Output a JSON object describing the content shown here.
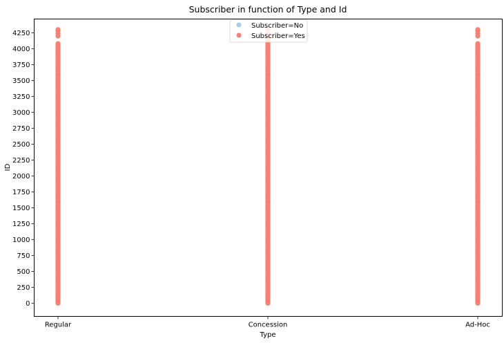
{
  "chart_data": {
    "type": "scatter",
    "title": "Subscriber in function of Type and Id",
    "xlabel": "Type",
    "ylabel": "ID",
    "categories": [
      "Regular",
      "Concession",
      "Ad-Hoc"
    ],
    "ylim": [
      -200,
      4450
    ],
    "yticks": [
      0,
      250,
      500,
      750,
      1000,
      1250,
      1500,
      1750,
      2000,
      2250,
      2500,
      2750,
      3000,
      3250,
      3500,
      3750,
      4000,
      4250
    ],
    "grid": false,
    "legend_position": "top-center",
    "series": [
      {
        "name": "Subscriber=No",
        "color": "#a6cee3",
        "ranges": []
      },
      {
        "name": "Subscriber=Yes",
        "color": "#fa8072",
        "ranges": [
          {
            "category": "Regular",
            "y_min": 0,
            "y_max": 4080,
            "extra": [
              4200,
              4240,
              4280,
              4300
            ]
          },
          {
            "category": "Concession",
            "y_min": 0,
            "y_max": 4300,
            "extra": []
          },
          {
            "category": "Ad-Hoc",
            "y_min": 0,
            "y_max": 4080,
            "extra": [
              4200,
              4240,
              4280,
              4300
            ]
          }
        ]
      }
    ]
  }
}
